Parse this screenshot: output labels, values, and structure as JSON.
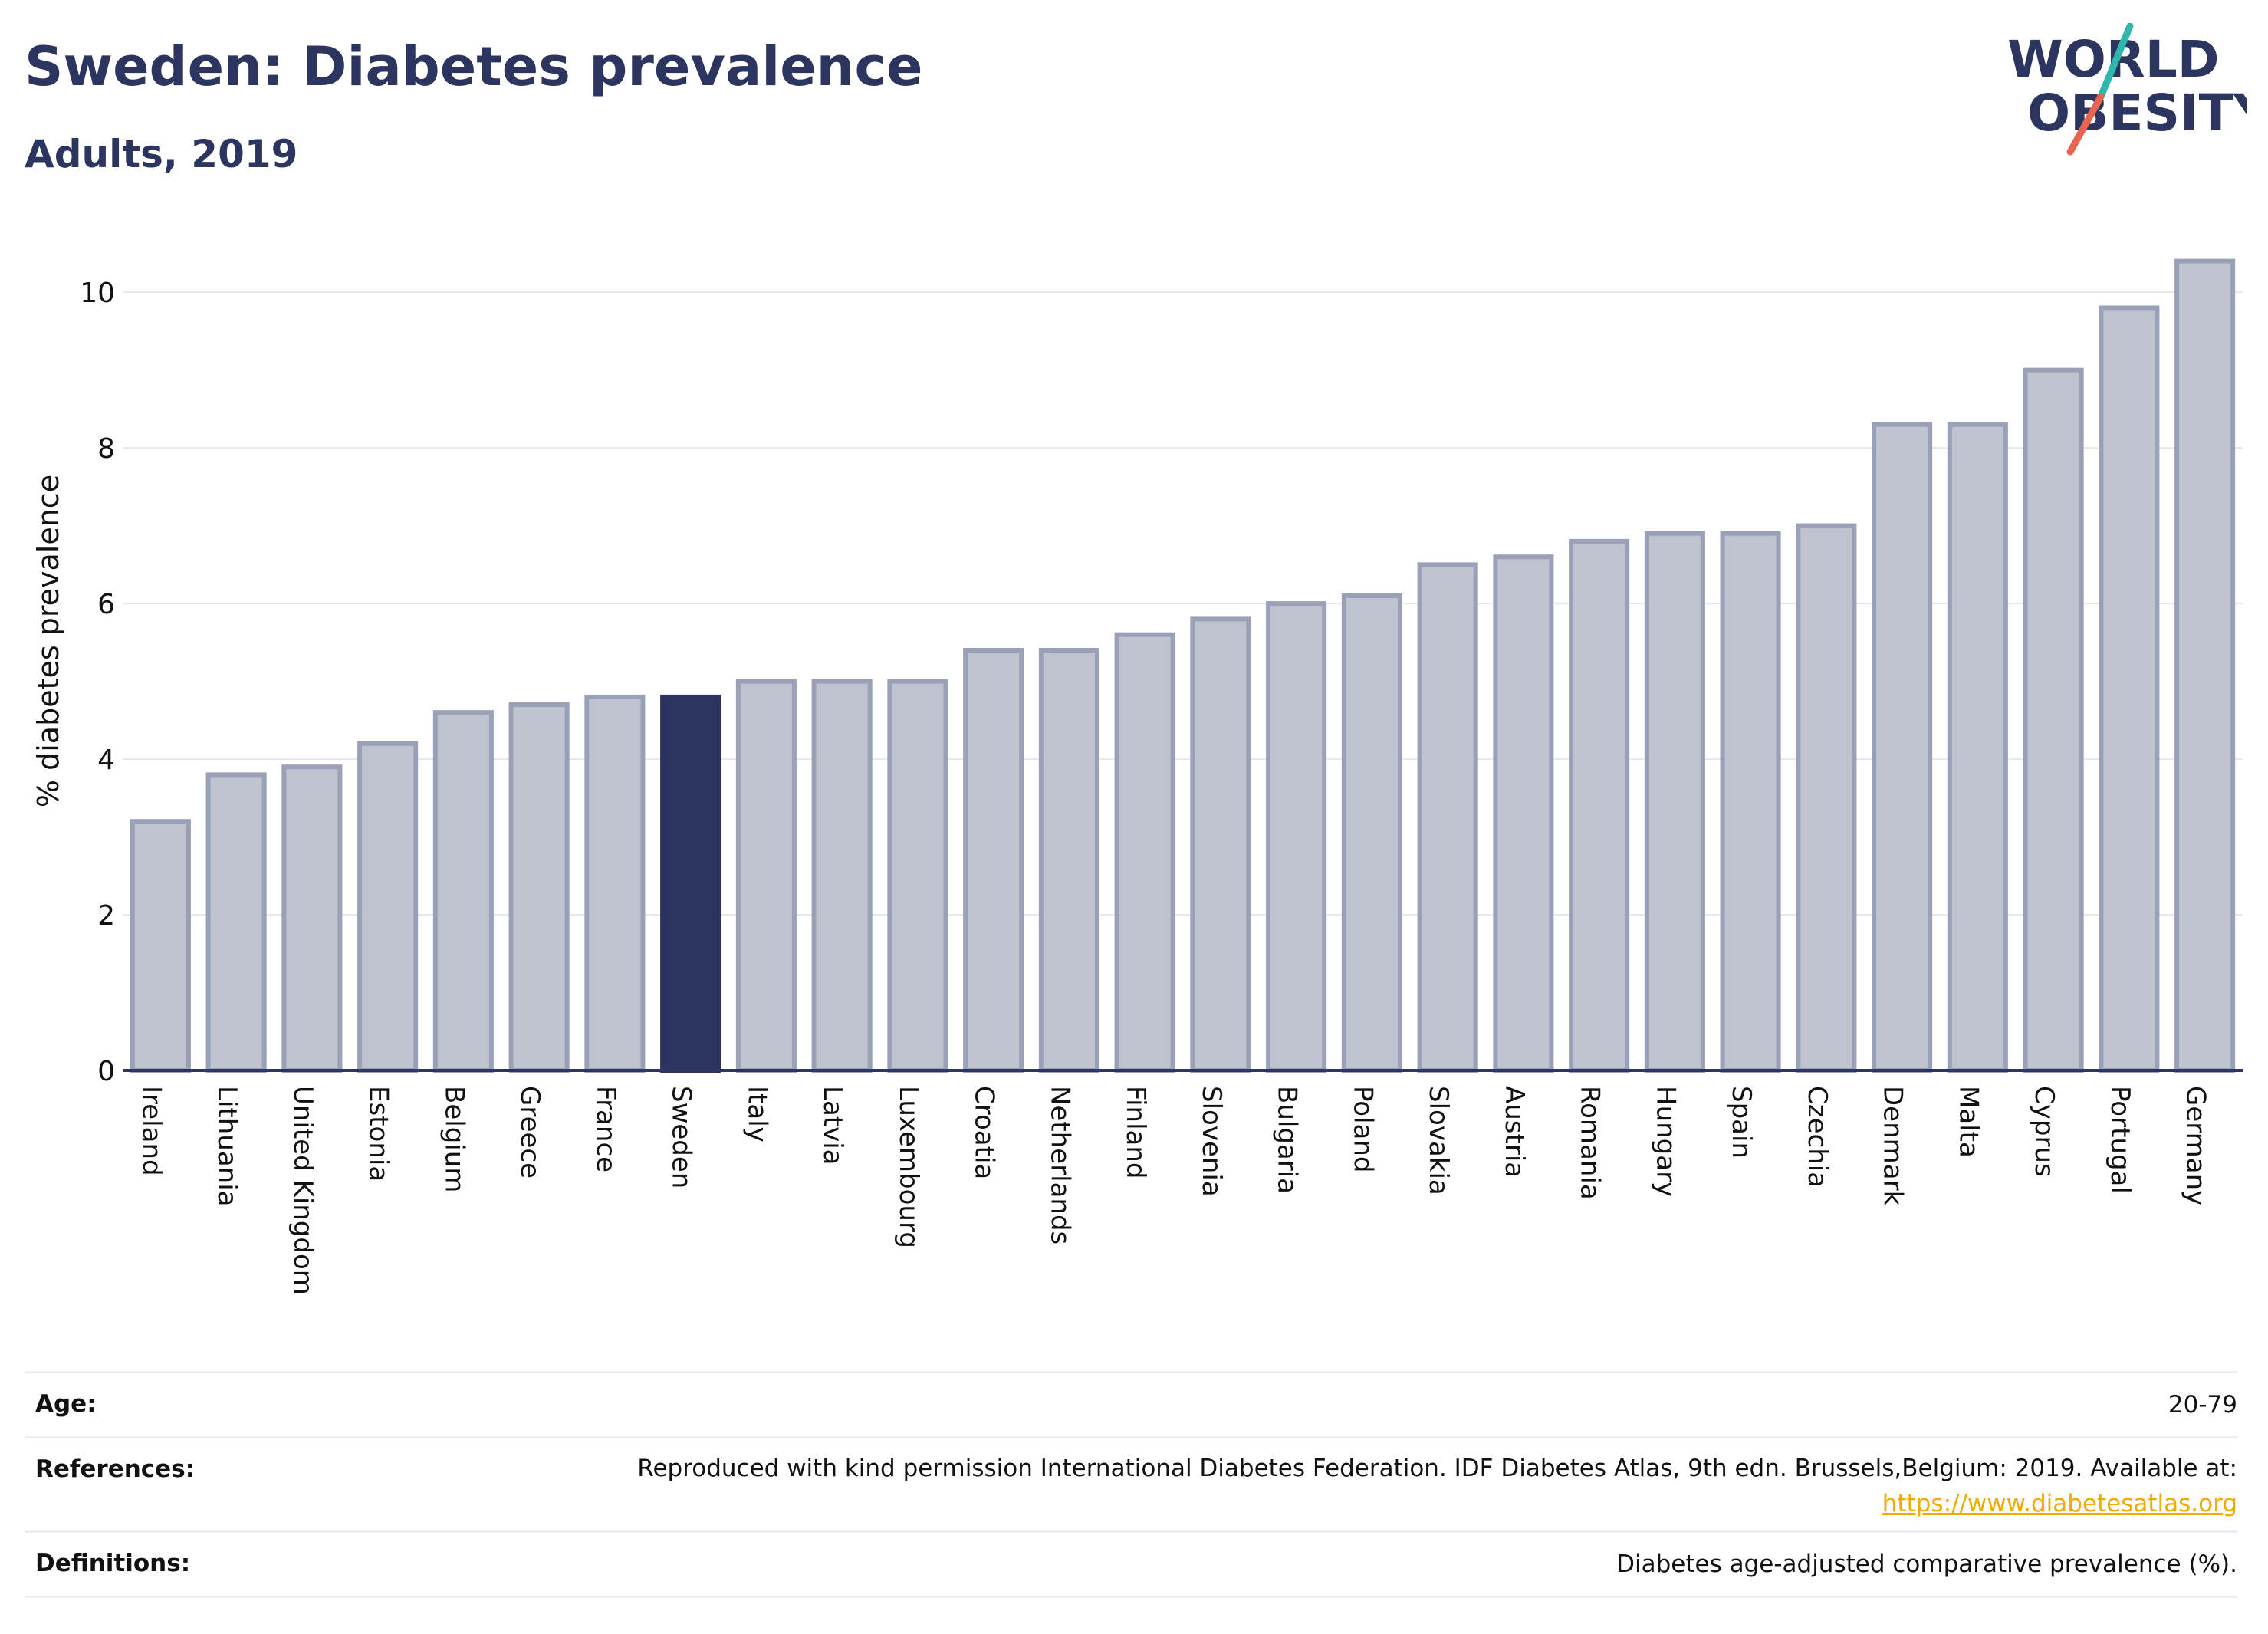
{
  "header": {
    "title": "Sweden: Diabetes prevalence",
    "subtitle": "Adults, 2019"
  },
  "logo": {
    "line1": "WORLD",
    "line2": "OBESITY"
  },
  "chart_data": {
    "type": "bar",
    "title": "Sweden: Diabetes prevalence",
    "subtitle": "Adults, 2019",
    "ylabel": "% diabetes prevalence",
    "xlabel": "",
    "ylim": [
      0,
      10.8
    ],
    "yticks": [
      0,
      2,
      4,
      6,
      8,
      10
    ],
    "grid": true,
    "highlight": "Sweden",
    "colors": {
      "bar_fill": "#bfc3d0",
      "bar_stroke": "#9aa0b8",
      "highlight_fill": "#2b3560",
      "grid": "#e6e8ef",
      "axis": "#2b3560"
    },
    "categories": [
      "Ireland",
      "Lithuania",
      "United Kingdom",
      "Estonia",
      "Belgium",
      "Greece",
      "France",
      "Sweden",
      "Italy",
      "Latvia",
      "Luxembourg",
      "Croatia",
      "Netherlands",
      "Finland",
      "Slovenia",
      "Bulgaria",
      "Poland",
      "Slovakia",
      "Austria",
      "Romania",
      "Hungary",
      "Spain",
      "Czechia",
      "Denmark",
      "Malta",
      "Cyprus",
      "Portugal",
      "Germany"
    ],
    "values": [
      3.2,
      3.8,
      3.9,
      4.2,
      4.6,
      4.7,
      4.8,
      4.8,
      5.0,
      5.0,
      5.0,
      5.4,
      5.4,
      5.6,
      5.8,
      6.0,
      6.1,
      6.5,
      6.6,
      6.8,
      6.9,
      6.9,
      7.0,
      8.3,
      8.3,
      9.0,
      9.8,
      10.4
    ]
  },
  "meta": {
    "age": {
      "label": "Age:",
      "value": "20-79"
    },
    "references": {
      "label": "References:",
      "value": "Reproduced with kind permission International Diabetes Federation. IDF Diabetes Atlas, 9th edn. Brussels,Belgium: 2019. Available at:",
      "link": "https://www.diabetesatlas.org"
    },
    "definitions": {
      "label": "Definitions:",
      "value": "Diabetes age-adjusted comparative prevalence (%)."
    }
  }
}
